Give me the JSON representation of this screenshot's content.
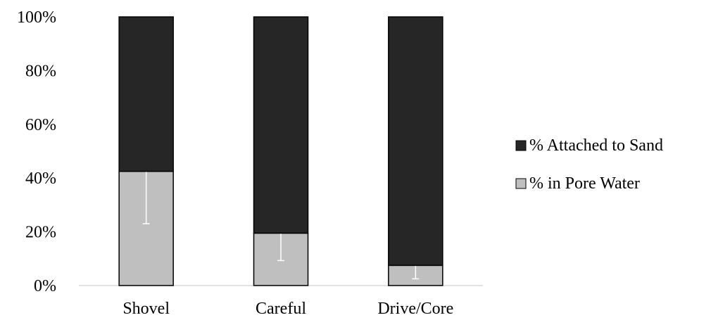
{
  "chart_data": {
    "type": "bar",
    "stacked": true,
    "percent_stacked": true,
    "categories": [
      "Shovel",
      "Careful",
      "Drive/Core"
    ],
    "series": [
      {
        "name": "% in Pore Water",
        "values": [
          42.5,
          19.5,
          7.5
        ],
        "error": [
          19.5,
          10.2,
          5.0
        ],
        "color": "#bfbfbf"
      },
      {
        "name": "% Attached to Sand",
        "values": [
          57.5,
          80.5,
          92.5
        ],
        "color": "#262626"
      }
    ],
    "legend_order": [
      1,
      0
    ],
    "yticks": [
      "0%",
      "20%",
      "40%",
      "60%",
      "80%",
      "100%"
    ],
    "ylim": [
      0,
      100
    ],
    "legend_position": "right",
    "grid": false,
    "error_bar_color": "#ffffff"
  }
}
